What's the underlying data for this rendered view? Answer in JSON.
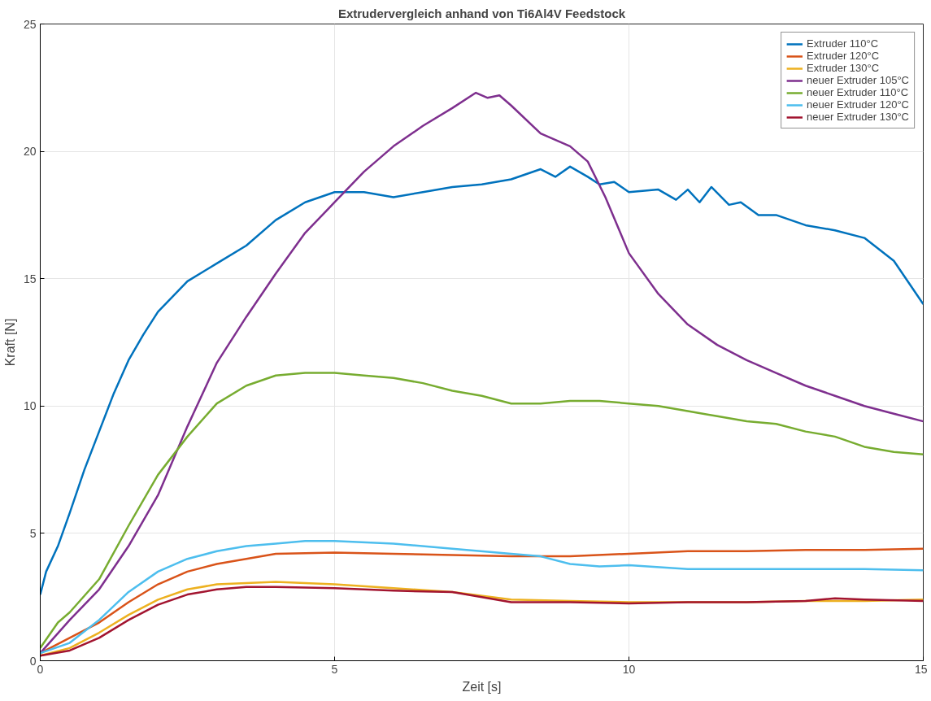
{
  "chart_data": {
    "type": "line",
    "title": "Extrudervergleich anhand von Ti6Al4V Feedstock",
    "xlabel": "Zeit [s]",
    "ylabel": "Kraft [N]",
    "xlim": [
      0,
      15
    ],
    "ylim": [
      0,
      25
    ],
    "xticks": [
      0,
      5,
      10,
      15
    ],
    "yticks": [
      0,
      5,
      10,
      15,
      20,
      25
    ],
    "grid": true,
    "legend": "top right",
    "marker": "none",
    "line_style": "solid",
    "series": [
      {
        "name": "Extruder 110°C",
        "color": "#0072bd",
        "x": [
          0,
          0.1,
          0.3,
          0.5,
          0.75,
          1,
          1.25,
          1.5,
          1.75,
          2,
          2.5,
          3,
          3.5,
          4,
          4.5,
          5,
          5.5,
          6,
          6.5,
          7,
          7.5,
          8,
          8.5,
          8.75,
          9,
          9.3,
          9.5,
          9.75,
          10,
          10.5,
          10.8,
          11,
          11.2,
          11.4,
          11.7,
          11.9,
          12.2,
          12.5,
          13,
          13.5,
          14,
          14.5,
          15
        ],
        "values": [
          2.6,
          3.5,
          4.5,
          5.8,
          7.5,
          9,
          10.5,
          11.8,
          12.8,
          13.7,
          14.9,
          15.6,
          16.3,
          17.3,
          18.0,
          18.4,
          18.4,
          18.2,
          18.4,
          18.6,
          18.7,
          18.9,
          19.3,
          19.0,
          19.4,
          19.0,
          18.7,
          18.8,
          18.4,
          18.5,
          18.1,
          18.5,
          18.0,
          18.6,
          17.9,
          18.0,
          17.5,
          17.5,
          17.1,
          16.9,
          16.6,
          15.7,
          14.0
        ]
      },
      {
        "name": "Extruder 120°C",
        "color": "#d95319",
        "x": [
          0,
          0.5,
          1,
          1.5,
          2,
          2.5,
          3,
          3.5,
          4,
          5,
          6,
          7,
          8,
          9,
          10,
          11,
          12,
          13,
          14,
          15
        ],
        "values": [
          0.3,
          0.9,
          1.5,
          2.3,
          3.0,
          3.5,
          3.8,
          4.0,
          4.2,
          4.25,
          4.2,
          4.15,
          4.1,
          4.1,
          4.2,
          4.3,
          4.3,
          4.35,
          4.35,
          4.4
        ]
      },
      {
        "name": "Extruder 130°C",
        "color": "#edb120",
        "x": [
          0,
          0.5,
          1,
          1.5,
          2,
          2.5,
          3,
          3.5,
          4,
          5,
          6,
          7,
          8,
          9,
          10,
          11,
          12,
          13,
          14,
          15
        ],
        "values": [
          0.2,
          0.5,
          1.1,
          1.8,
          2.4,
          2.8,
          3.0,
          3.05,
          3.1,
          3.0,
          2.85,
          2.7,
          2.4,
          2.35,
          2.3,
          2.3,
          2.3,
          2.35,
          2.35,
          2.4
        ]
      },
      {
        "name": "neuer Extruder 105°C",
        "color": "#7e2f8e",
        "x": [
          0,
          0.5,
          1,
          1.5,
          2,
          2.5,
          3,
          3.5,
          4,
          4.5,
          5,
          5.5,
          6,
          6.5,
          7,
          7.4,
          7.6,
          7.8,
          8,
          8.5,
          9,
          9.3,
          9.6,
          10,
          10.5,
          11,
          11.5,
          12,
          12.5,
          13,
          13.5,
          14,
          14.5,
          15
        ],
        "values": [
          0.3,
          1.6,
          2.8,
          4.5,
          6.5,
          9.2,
          11.7,
          13.5,
          15.2,
          16.8,
          18.0,
          19.2,
          20.2,
          21.0,
          21.7,
          22.3,
          22.1,
          22.2,
          21.8,
          20.7,
          20.2,
          19.6,
          18.2,
          16.0,
          14.4,
          13.2,
          12.4,
          11.8,
          11.3,
          10.8,
          10.4,
          10.0,
          9.7,
          9.4
        ]
      },
      {
        "name": "neuer Extruder 110°C",
        "color": "#77ac30",
        "x": [
          0,
          0.3,
          0.5,
          1,
          1.5,
          2,
          2.5,
          3,
          3.5,
          4,
          4.5,
          5,
          5.5,
          6,
          6.5,
          7,
          7.5,
          8,
          8.5,
          9,
          9.5,
          10,
          10.5,
          11,
          11.5,
          12,
          12.5,
          13,
          13.5,
          14,
          14.5,
          15
        ],
        "values": [
          0.5,
          1.5,
          1.9,
          3.2,
          5.3,
          7.3,
          8.8,
          10.1,
          10.8,
          11.2,
          11.3,
          11.3,
          11.2,
          11.1,
          10.9,
          10.6,
          10.4,
          10.1,
          10.1,
          10.2,
          10.2,
          10.1,
          10.0,
          9.8,
          9.6,
          9.4,
          9.3,
          9.0,
          8.8,
          8.4,
          8.2,
          8.1
        ]
      },
      {
        "name": "neuer Extruder 120°C",
        "color": "#4dbeee",
        "x": [
          0,
          0.5,
          1,
          1.5,
          2,
          2.5,
          3,
          3.5,
          4,
          4.5,
          5,
          6,
          7,
          8,
          8.5,
          9,
          9.5,
          10,
          11,
          12,
          13,
          14,
          15
        ],
        "values": [
          0.3,
          0.7,
          1.6,
          2.7,
          3.5,
          4.0,
          4.3,
          4.5,
          4.6,
          4.7,
          4.7,
          4.6,
          4.4,
          4.2,
          4.1,
          3.8,
          3.7,
          3.75,
          3.6,
          3.6,
          3.6,
          3.6,
          3.55
        ]
      },
      {
        "name": "neuer Extruder 130°C",
        "color": "#a2142f",
        "x": [
          0,
          0.5,
          1,
          1.5,
          2,
          2.5,
          3,
          3.5,
          4,
          5,
          6,
          7,
          7.5,
          8,
          9,
          10,
          11,
          12,
          13,
          13.5,
          14,
          15
        ],
        "values": [
          0.2,
          0.4,
          0.9,
          1.6,
          2.2,
          2.6,
          2.8,
          2.9,
          2.9,
          2.85,
          2.75,
          2.7,
          2.5,
          2.3,
          2.3,
          2.25,
          2.3,
          2.3,
          2.35,
          2.45,
          2.4,
          2.35
        ]
      }
    ]
  }
}
